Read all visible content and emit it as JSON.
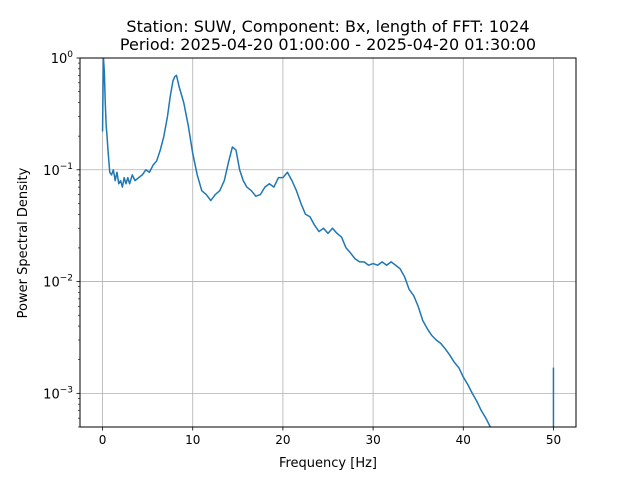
{
  "chart_data": {
    "type": "line",
    "title_line1": "Station: SUW, Component: Bx, length of FFT: 1024",
    "title_line2": "Period: 2025-04-20 01:00:00 - 2025-04-20 01:30:00",
    "xlabel": "Frequency [Hz]",
    "ylabel": "Power Spectral Density",
    "xlim": [
      -2.5,
      52.5
    ],
    "ylim": [
      0.0005,
      1
    ],
    "yscale": "log",
    "grid": true,
    "x_ticks": [
      0,
      10,
      20,
      30,
      40,
      50
    ],
    "x_tick_labels": [
      "0",
      "10",
      "20",
      "30",
      "40",
      "50"
    ],
    "y_ticks": [
      0.001,
      0.01,
      0.1,
      1
    ],
    "y_tick_labels": [
      {
        "base": "10",
        "exp": "−3"
      },
      {
        "base": "10",
        "exp": "−2"
      },
      {
        "base": "10",
        "exp": "−1"
      },
      {
        "base": "10",
        "exp": "0"
      }
    ],
    "series": [
      {
        "color": "#1f77b4",
        "x": [
          0.0,
          0.05,
          0.1,
          0.2,
          0.3,
          0.4,
          0.5,
          0.6,
          0.8,
          1.0,
          1.2,
          1.4,
          1.6,
          1.8,
          2.0,
          2.2,
          2.4,
          2.6,
          2.8,
          3.0,
          3.3,
          3.6,
          4.0,
          4.4,
          4.8,
          5.2,
          5.6,
          6.0,
          6.4,
          6.8,
          7.2,
          7.5,
          7.8,
          8.0,
          8.2,
          8.5,
          9.0,
          9.5,
          10.0,
          10.5,
          11.0,
          11.5,
          12.0,
          12.5,
          13.0,
          13.5,
          14.0,
          14.4,
          14.8,
          15.2,
          15.6,
          16.0,
          16.5,
          17.0,
          17.5,
          18.0,
          18.5,
          19.0,
          19.5,
          20.0,
          20.5,
          21.0,
          21.5,
          22.0,
          22.5,
          23.0,
          23.5,
          24.0,
          24.5,
          25.0,
          25.5,
          26.0,
          26.5,
          27.0,
          27.5,
          28.0,
          28.5,
          29.0,
          29.5,
          30.0,
          30.5,
          31.0,
          31.5,
          32.0,
          32.5,
          33.0,
          33.5,
          34.0,
          34.5,
          35.0,
          35.5,
          36.0,
          36.5,
          37.0,
          37.5,
          38.0,
          38.5,
          39.0,
          39.5,
          40.0,
          40.5,
          41.0,
          41.5,
          42.0,
          42.5,
          43.0
        ],
        "y": [
          0.22,
          0.5,
          1.0,
          0.75,
          0.4,
          0.25,
          0.2,
          0.15,
          0.095,
          0.09,
          0.1,
          0.08,
          0.095,
          0.075,
          0.08,
          0.07,
          0.085,
          0.075,
          0.085,
          0.075,
          0.09,
          0.08,
          0.085,
          0.09,
          0.1,
          0.095,
          0.11,
          0.12,
          0.15,
          0.2,
          0.3,
          0.45,
          0.62,
          0.68,
          0.7,
          0.55,
          0.4,
          0.25,
          0.14,
          0.09,
          0.065,
          0.06,
          0.053,
          0.06,
          0.065,
          0.08,
          0.12,
          0.16,
          0.15,
          0.1,
          0.08,
          0.07,
          0.065,
          0.058,
          0.06,
          0.07,
          0.075,
          0.07,
          0.085,
          0.085,
          0.095,
          0.08,
          0.065,
          0.05,
          0.04,
          0.038,
          0.032,
          0.028,
          0.03,
          0.027,
          0.03,
          0.027,
          0.025,
          0.02,
          0.018,
          0.016,
          0.015,
          0.015,
          0.014,
          0.0145,
          0.014,
          0.015,
          0.014,
          0.015,
          0.014,
          0.013,
          0.011,
          0.0085,
          0.0075,
          0.006,
          0.0045,
          0.0038,
          0.0033,
          0.003,
          0.0028,
          0.0025,
          0.0022,
          0.0019,
          0.0017,
          0.0014,
          0.0012,
          0.001,
          0.00085,
          0.0007,
          0.0006,
          0.0005
        ]
      },
      {
        "color": "#1f77b4",
        "x": [
          50.0,
          50.0
        ],
        "y": [
          0.0005,
          0.0017
        ]
      }
    ]
  }
}
